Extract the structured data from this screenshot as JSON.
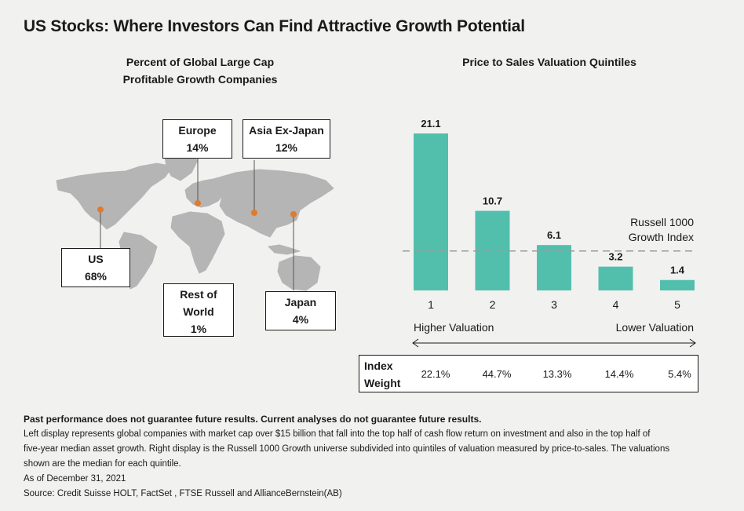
{
  "title": "US Stocks: Where Investors Can Find Attractive Growth Potential",
  "left_panel": {
    "title_line1": "Percent of Global Large Cap",
    "title_line2": "Profitable Growth Companies",
    "regions": [
      {
        "name": "Europe",
        "value": "14%"
      },
      {
        "name": "Asia Ex-Japan",
        "value": "12%"
      },
      {
        "name": "US",
        "value": "68%"
      },
      {
        "name_line1": "Rest of",
        "name_line2": "World",
        "value": "1%"
      },
      {
        "name": "Japan",
        "value": "4%"
      }
    ]
  },
  "right_panel": {
    "title": "Price to Sales Valuation Quintiles",
    "reference_label_line1": "Russell 1000",
    "reference_label_line2": "Growth Index",
    "higher_label": "Higher Valuation",
    "lower_label": "Lower Valuation",
    "index_weight_label_line1": "Index",
    "index_weight_label_line2": "Weight",
    "index_weights": [
      "22.1%",
      "44.7%",
      "13.3%",
      "14.4%",
      "5.4%"
    ]
  },
  "chart_data": {
    "type": "bar",
    "categories": [
      "1",
      "2",
      "3",
      "4",
      "5"
    ],
    "values": [
      21.1,
      10.7,
      6.1,
      3.2,
      1.4
    ],
    "title": "Price to Sales Valuation Quintiles",
    "ylim": [
      0,
      21.1
    ],
    "bar_color": "#52bfad",
    "reference_line": {
      "label": "Russell 1000 Growth Index",
      "value": 5.3
    },
    "grid": false
  },
  "colors": {
    "bar": "#52bfad",
    "map": "#b5b5b5",
    "marker": "#e07b2e",
    "background": "#f1f1f0"
  },
  "footer": {
    "disclaimer": "Past performance does not guarantee future results. Current analyses do not guarantee future results.",
    "line1": "Left display represents global companies with market cap over $15 billion that fall into the top half of cash flow return on investment and also in the top half of",
    "line2": "five-year median asset growth. Right display is the Russell 1000 Growth universe subdivided into quintiles of valuation measured by price-to-sales. The valuations",
    "line3": "shown are the median for each quintile.",
    "date": "As of December 31, 2021",
    "source": "Source: Credit Suisse HOLT, FactSet , FTSE Russell and AllianceBernstein(AB)"
  }
}
